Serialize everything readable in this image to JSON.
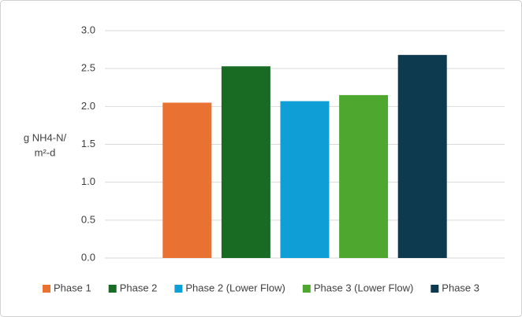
{
  "chart_data": {
    "type": "bar",
    "ylabel": [
      "g NH4-N/",
      "m²-d"
    ],
    "series": [
      {
        "name": "Phase 1",
        "color": "#e97132",
        "values": [
          2.05
        ]
      },
      {
        "name": "Phase 2",
        "color": "#196b24",
        "values": [
          2.53
        ]
      },
      {
        "name": "Phase 2 (Lower Flow)",
        "color": "#0f9ed5",
        "values": [
          2.07
        ]
      },
      {
        "name": "Phase 3 (Lower Flow)",
        "color": "#4ea72e",
        "values": [
          2.15
        ]
      },
      {
        "name": "Phase 3",
        "color": "#0e3a4f",
        "values": [
          2.68
        ]
      }
    ],
    "ylim": [
      0,
      3
    ],
    "yticks": [
      {
        "value": 0,
        "label": "0.0"
      },
      {
        "value": 0.5,
        "label": "0.5"
      },
      {
        "value": 1,
        "label": "1.0"
      },
      {
        "value": 1.5,
        "label": "1.5"
      },
      {
        "value": 2,
        "label": "2.0"
      },
      {
        "value": 2.5,
        "label": "2.5"
      },
      {
        "value": 3,
        "label": "3.0"
      }
    ],
    "grid": true,
    "legend": "bottom"
  }
}
